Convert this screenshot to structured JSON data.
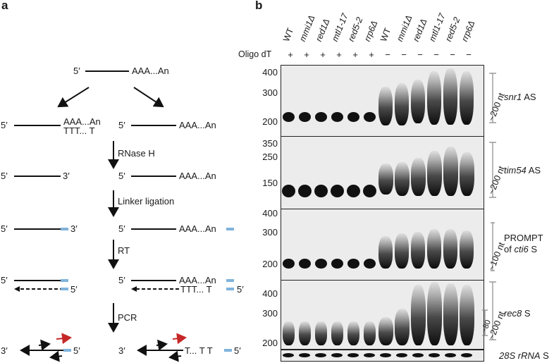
{
  "panel_a": {
    "label": "a",
    "top_prime": "5′",
    "top_polyA": "AAA...An",
    "left_prime": "5′",
    "left_polyA": "AAA...An",
    "left_oligo": "TTT... T",
    "right_prime": "5′",
    "right_polyA": "AAA...An",
    "step1": "RNase H",
    "r2_left_5": "5′",
    "r2_left_3": "3′",
    "r2_right_5": "5′",
    "r2_right_polyA": "AAA...An",
    "step2": "Linker ligation",
    "r3_left_5": "5′",
    "r3_left_3": "3′",
    "r3_right_5": "5′",
    "r3_right_polyA": "AAA...An",
    "step3": "RT",
    "r4_left_5": "5′",
    "r4_left_5b": "5′",
    "r4_right_5": "5′",
    "r4_right_polyA": "AAA...An",
    "r4_right_oligo": "TTT... T",
    "r4_right_5b": "5′",
    "step4": "PCR",
    "r5_left_3": "3′",
    "r5_left_5": "5′",
    "r5_right_3": "3′",
    "r5_right_seq": "T... T T",
    "r5_right_5": "5′"
  },
  "panel_b": {
    "label": "b",
    "oligo_label": "Oligo dT",
    "lanes": [
      "WT",
      "mmi1Δ",
      "red1Δ",
      "mtl1-17",
      "red5-2",
      "rrp6Δ",
      "WT",
      "mmi1Δ",
      "red1Δ",
      "mtl1-17",
      "red5-2",
      "rrp6Δ"
    ],
    "oligo_signs": [
      "+",
      "+",
      "+",
      "+",
      "+",
      "+",
      "−",
      "−",
      "−",
      "−",
      "−",
      "−"
    ],
    "gels": [
      {
        "ticks": [
          "400",
          "300",
          "200"
        ],
        "name_italic": "snr1",
        "name_rest": " AS",
        "size": "~200 nt"
      },
      {
        "ticks": [
          "350",
          "250",
          "150"
        ],
        "name_italic": "tim54",
        "name_rest": " AS",
        "size": "~200 nt"
      },
      {
        "ticks": [
          "400",
          "300",
          "200"
        ],
        "name_plain": "PROMPT",
        "name_plain2": "of ",
        "name_italic2": "cti6",
        "name_rest2": " S",
        "size": "~100 nt"
      },
      {
        "ticks": [
          "400",
          "300",
          "200"
        ],
        "name_italic": "rec8",
        "name_rest": " S",
        "size": "~200 nt",
        "size2": "~80"
      },
      {
        "name_italic": "28S rRNA",
        "name_rest": " S"
      }
    ]
  }
}
